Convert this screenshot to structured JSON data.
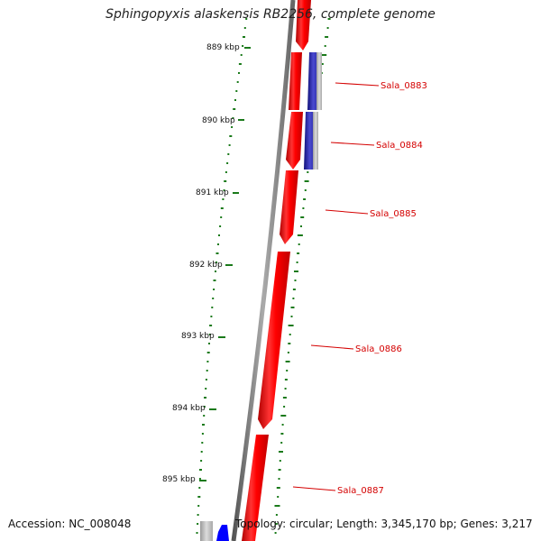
{
  "title": "Sphingopyxis alaskensis RB2256, complete genome",
  "footer": {
    "accession": "Accession: NC_008048",
    "summary": "Topology: circular; Length: 3,345,170 bp; Genes: 3,217"
  },
  "ruler": {
    "unit": "kbp",
    "ticks": [
      "889 kbp",
      "890 kbp",
      "891 kbp",
      "892 kbp",
      "893 kbp",
      "894 kbp",
      "895 kbp"
    ]
  },
  "genes": [
    {
      "name": "",
      "strand": "forward",
      "color": "#ff0000"
    },
    {
      "name": "Sala_0883",
      "strand": "reverse",
      "color": "#1a1aa0"
    },
    {
      "name": "Sala_0884",
      "strand": "reverse",
      "color": "#1a1aa0"
    },
    {
      "name": "",
      "strand": "forward",
      "color": "#ff0000"
    },
    {
      "name": "Sala_0885",
      "strand": "forward",
      "color": "#ff0000"
    },
    {
      "name": "Sala_0886",
      "strand": "forward",
      "color": "#ff0000"
    },
    {
      "name": "Sala_0887",
      "strand": "forward",
      "color": "#ff0000"
    },
    {
      "name": "",
      "strand": "reverse",
      "color": "#0000ff"
    }
  ],
  "colors": {
    "forward_gene": "#ff0000",
    "reverse_gene": "#1a1aa0",
    "backbone": "#888888",
    "gc_track": "#1a7a1a",
    "label": "#d40000"
  }
}
